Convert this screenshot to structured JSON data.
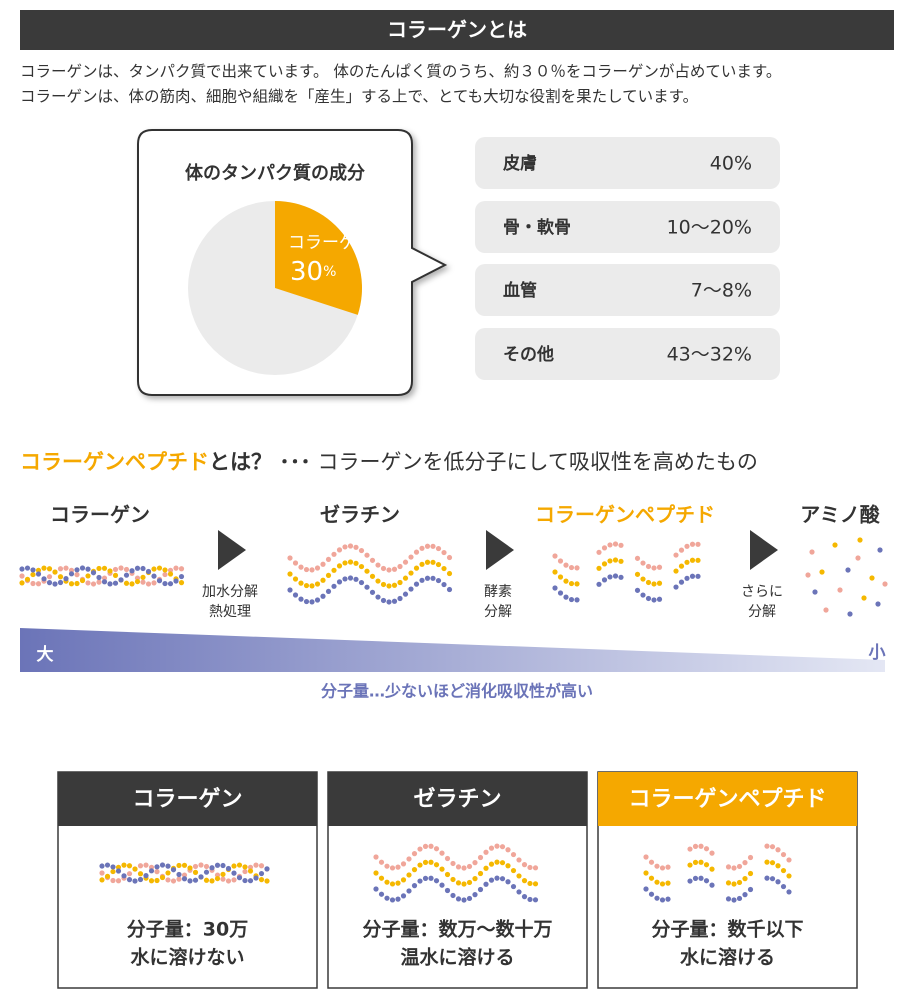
{
  "header": {
    "title": "コラーゲンとは"
  },
  "intro": [
    "コラーゲンは、タンパク質で出来ています。 体のたんぱく質のうち、約３０％をコラーゲンが占めています。",
    "コラーゲンは、体の筋肉、細胞や組織を「産生」する上で、とても大切な役割を果たしています。"
  ],
  "composition": {
    "title": "体のタンパク質の成分",
    "pie": {
      "label": "コラーゲン",
      "value": 30,
      "unit": "%"
    },
    "rows": [
      {
        "label": "皮膚",
        "value": "40%"
      },
      {
        "label": "骨・軟骨",
        "value": "10〜20%"
      },
      {
        "label": "血管",
        "value": "7〜8%"
      },
      {
        "label": "その他",
        "value": "43〜32%"
      }
    ]
  },
  "peptide": {
    "heading": {
      "highlight": "コラーゲンペプチド",
      "emphasis": "とは？ ･･･",
      "rest": " コラーゲンを低分子にして吸収性を高めたもの"
    },
    "stages": [
      "コラーゲン",
      "ゼラチン",
      "コラーゲンペプチド",
      "アミノ酸"
    ],
    "processes": [
      [
        "加水分解",
        "熱処理"
      ],
      [
        "酵素",
        "分解"
      ],
      [
        "さらに",
        "分解"
      ]
    ],
    "scale": {
      "large": "大",
      "small": "小",
      "caption": "分子量…少ないほど消化吸収性が高い"
    }
  },
  "cards": [
    {
      "title": "コラーゲン",
      "lines": [
        "分子量：30万",
        "水に溶けない"
      ]
    },
    {
      "title": "ゼラチン",
      "lines": [
        "分子量：数万〜数十万",
        "温水に溶ける"
      ]
    },
    {
      "title": "コラーゲンペプチド",
      "lines": [
        "分子量：数千以下",
        "水に溶ける"
      ]
    }
  ]
}
